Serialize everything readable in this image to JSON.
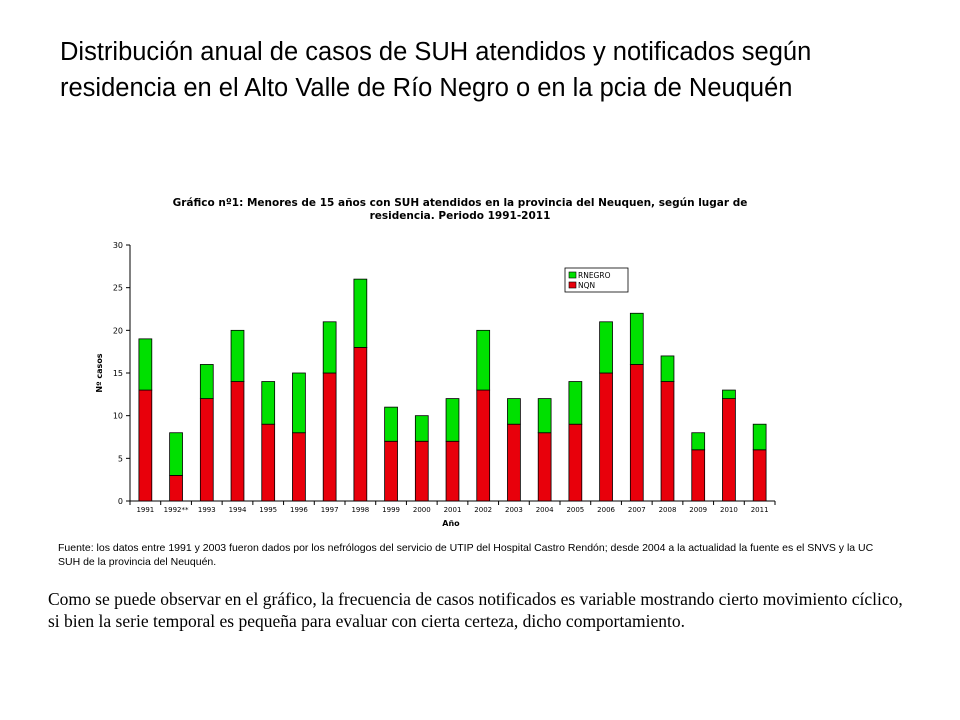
{
  "slide": {
    "title": "Distribución anual de casos  de SUH atendidos y notificados según residencia en el Alto Valle de Río Negro o en la pcia de Neuquén",
    "source": "Fuente: los datos entre 1991 y 2003 fueron dados por los nefrólogos del servicio de UTIP del Hospital Castro Rendón; desde 2004 a la actualidad la fuente es el SNVS y  la UC SUH de la provincia del Neuquén.",
    "conclusion": "Como se puede observar en el gráfico, la frecuencia de casos notificados es variable mostrando cierto movimiento cíclico, si bien la serie temporal es pequeña para evaluar con cierta certeza, dicho comportamiento."
  },
  "chart_data": {
    "type": "bar",
    "stacked": true,
    "title_line1": "Gráfico nº1: Menores de 15 años con SUH atendidos en la provincia del Neuquen, según lugar de",
    "title_line2": "residencia. Periodo 1991-2011",
    "xlabel": "Año",
    "ylabel": "Nº casos",
    "ylim": [
      0,
      30
    ],
    "yticks": [
      0,
      5,
      10,
      15,
      20,
      25,
      30
    ],
    "grid": false,
    "legend_position": "top-right",
    "categories": [
      "1991",
      "1992**",
      "1993",
      "1994",
      "1995",
      "1996",
      "1997",
      "1998",
      "1999",
      "2000",
      "2001",
      "2002",
      "2003",
      "2004",
      "2005",
      "2006",
      "2007",
      "2008",
      "2009",
      "2010",
      "2011"
    ],
    "series": [
      {
        "name": "NQN",
        "color": "#e8000b",
        "values": [
          13,
          3,
          12,
          14,
          9,
          8,
          15,
          18,
          7,
          7,
          7,
          13,
          9,
          8,
          9,
          15,
          16,
          14,
          6,
          12,
          6
        ]
      },
      {
        "name": "RNEGRO",
        "color": "#00e000",
        "values": [
          6,
          5,
          4,
          6,
          5,
          7,
          6,
          8,
          4,
          3,
          5,
          7,
          3,
          4,
          5,
          6,
          6,
          3,
          2,
          1,
          3
        ]
      }
    ]
  }
}
